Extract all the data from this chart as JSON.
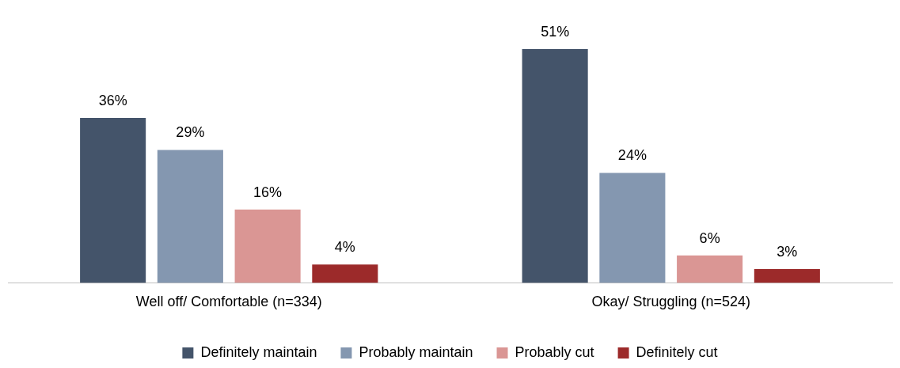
{
  "chart_data": {
    "type": "bar",
    "categories": [
      "Well off/ Comfortable (n=334)",
      "Okay/ Struggling (n=524)"
    ],
    "series": [
      {
        "name": "Definitely maintain",
        "color": "#44546a",
        "values": [
          36,
          51
        ],
        "value_labels": [
          "36%",
          "51%"
        ]
      },
      {
        "name": "Probably maintain",
        "color": "#8497b0",
        "values": [
          29,
          24
        ],
        "value_labels": [
          "29%",
          "24%"
        ]
      },
      {
        "name": "Probably cut",
        "color": "#da9694",
        "values": [
          16,
          6
        ],
        "value_labels": [
          "16%",
          "6%"
        ]
      },
      {
        "name": "Definitely cut",
        "color": "#9c2a2a",
        "values": [
          4,
          3
        ],
        "value_labels": [
          "4%",
          "3%"
        ]
      }
    ],
    "legend": "bottom",
    "grid": false
  }
}
